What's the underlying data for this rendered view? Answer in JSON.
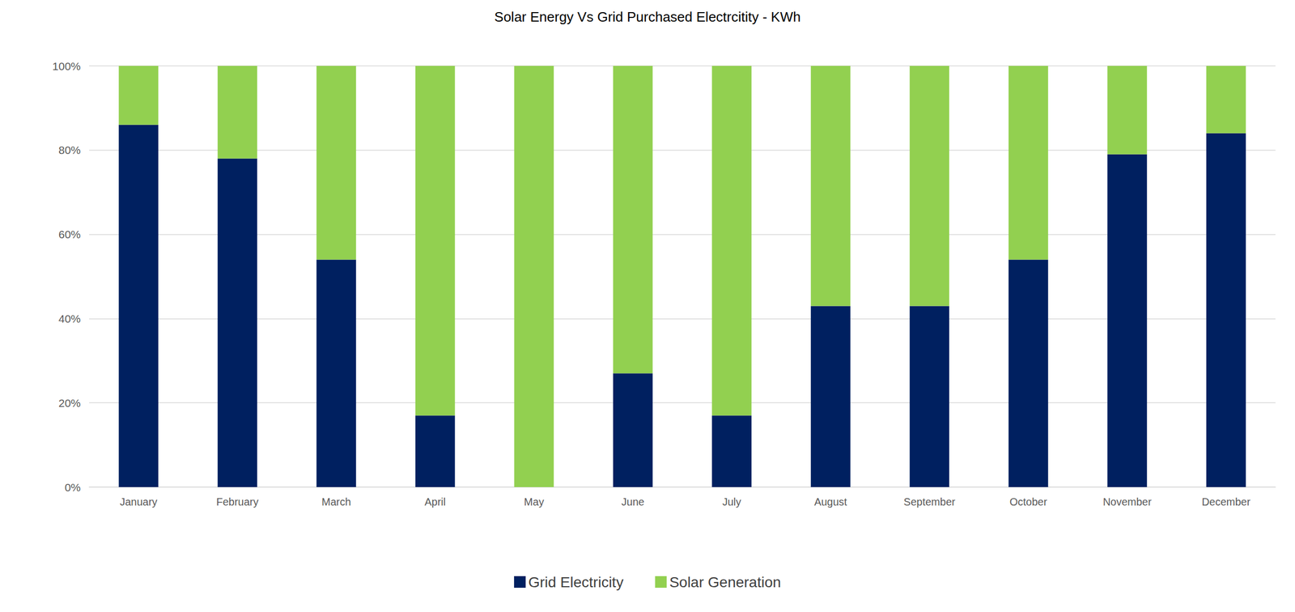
{
  "chart_data": {
    "type": "bar",
    "title": "Solar Energy Vs Grid Purchased Electrcitity - KWh",
    "categories": [
      "January",
      "February",
      "March",
      "April",
      "May",
      "June",
      "July",
      "August",
      "September",
      "October",
      "November",
      "December"
    ],
    "series": [
      {
        "name": "Grid Electricity",
        "color": "#002060",
        "values": [
          86,
          78,
          54,
          17,
          0,
          27,
          17,
          43,
          43,
          54,
          79,
          84
        ]
      },
      {
        "name": "Solar Generation",
        "color": "#92d050",
        "values": [
          14,
          22,
          46,
          83,
          100,
          73,
          83,
          57,
          57,
          46,
          21,
          16
        ]
      }
    ],
    "ylim": [
      0,
      100
    ],
    "yticks": [
      {
        "value": 0,
        "label": "0%"
      },
      {
        "value": 20,
        "label": "20%"
      },
      {
        "value": 40,
        "label": "40%"
      },
      {
        "value": 60,
        "label": "60%"
      },
      {
        "value": 80,
        "label": "80%"
      },
      {
        "value": 100,
        "label": "100%"
      }
    ],
    "stacked": true,
    "grid": true,
    "legend": "bottom"
  }
}
